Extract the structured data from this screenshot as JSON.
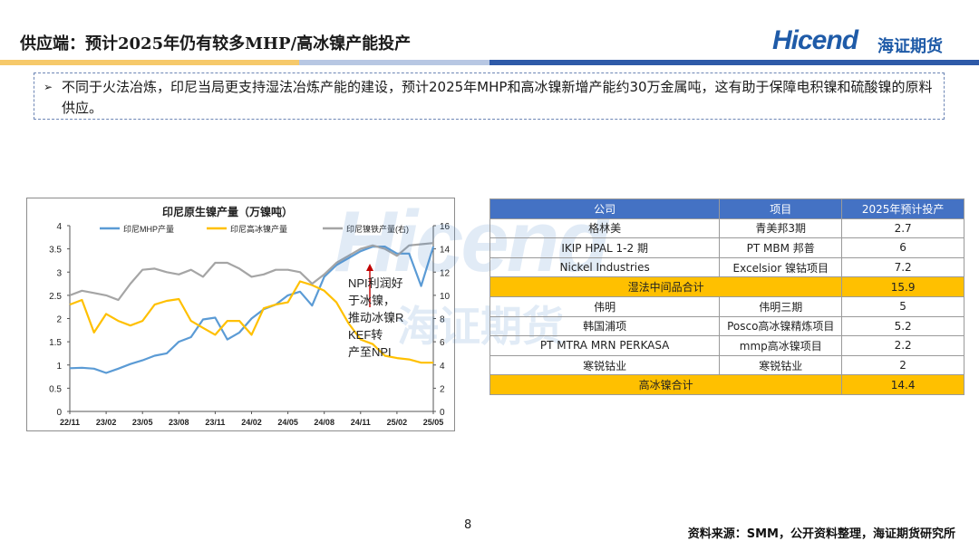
{
  "header": {
    "title": "供应端：预计2025年仍有较多MHP/高冰镍产能投产",
    "logo_en": "Hicend",
    "logo_cn": "海证期货"
  },
  "summary": {
    "bullet": "➢",
    "text": "不同于火法冶炼，印尼当局更支持湿法冶炼产能的建设，预计2025年MHP和高冰镍新增产能约30万金属吨，这有助于保障电积镍和硫酸镍的原料供应。"
  },
  "watermark": {
    "en": "Hicend",
    "cn": "海证期货"
  },
  "chart_data": {
    "type": "line",
    "title": "印尼原生镍产量（万镍吨）",
    "x": [
      "22/11",
      "22/12",
      "23/01",
      "23/02",
      "23/03",
      "23/04",
      "23/05",
      "23/06",
      "23/07",
      "23/08",
      "23/09",
      "23/10",
      "23/11",
      "23/12",
      "24/01",
      "24/02",
      "24/03",
      "24/04",
      "24/05",
      "24/06",
      "24/07",
      "24/08",
      "24/09",
      "24/10",
      "24/11",
      "24/12",
      "25/01",
      "25/02",
      "25/03",
      "25/04",
      "25/05"
    ],
    "xticks": [
      "22/11",
      "23/02",
      "23/05",
      "23/08",
      "23/11",
      "24/02",
      "24/05",
      "24/08",
      "24/11",
      "25/02",
      "25/05"
    ],
    "y_left": {
      "lim": [
        0,
        4
      ],
      "ticks": [
        "0",
        "0.5",
        "1",
        "1.5",
        "2",
        "2.5",
        "3",
        "3.5",
        "4"
      ]
    },
    "y_right": {
      "lim": [
        0,
        16
      ],
      "ticks": [
        "0",
        "2",
        "4",
        "6",
        "8",
        "10",
        "12",
        "14",
        "16"
      ]
    },
    "series": [
      {
        "name": "印尼MHP产量",
        "axis": "left",
        "color": "#5b9bd5",
        "values": [
          0.93,
          0.94,
          0.92,
          0.83,
          0.92,
          1.02,
          1.1,
          1.2,
          1.25,
          1.5,
          1.6,
          1.98,
          2.02,
          1.55,
          1.7,
          2.0,
          2.2,
          2.3,
          2.5,
          2.58,
          2.28,
          2.9,
          3.15,
          3.3,
          3.45,
          3.55,
          3.55,
          3.4,
          3.4,
          2.7,
          3.55
        ]
      },
      {
        "name": "印尼高冰镍产量",
        "axis": "left",
        "color": "#ffc000",
        "values": [
          2.3,
          2.4,
          1.7,
          2.1,
          1.95,
          1.85,
          1.95,
          2.3,
          2.38,
          2.42,
          1.95,
          1.8,
          1.65,
          1.95,
          1.95,
          1.65,
          2.22,
          2.3,
          2.35,
          2.8,
          2.72,
          2.6,
          2.35,
          1.9,
          1.55,
          1.45,
          1.2,
          1.15,
          1.12,
          1.05,
          1.05
        ]
      },
      {
        "name": "印尼镍铁产量(右)",
        "axis": "right",
        "color": "#a5a5a5",
        "values": [
          10.0,
          10.4,
          10.2,
          10.0,
          9.6,
          11.0,
          12.2,
          12.3,
          12.0,
          11.8,
          12.2,
          11.6,
          12.8,
          12.8,
          12.3,
          11.6,
          11.8,
          12.2,
          12.2,
          12.0,
          11.0,
          11.8,
          12.8,
          13.4,
          14.0,
          14.3,
          14.0,
          13.4,
          14.3,
          14.4,
          14.5
        ]
      }
    ],
    "annotation": "NPI利润好于冰镍，推动冰镍RKEF转产至NPI"
  },
  "table": {
    "headers": [
      "公司",
      "项目",
      "2025年预计投产"
    ],
    "rows": [
      {
        "company": "格林美",
        "project": "青美邦3期",
        "value": "2.7",
        "subtotal": false
      },
      {
        "company": "IKIP HPAL 1-2 期",
        "project": "PT MBM 邦普",
        "value": "6",
        "subtotal": false
      },
      {
        "company": "Nickel Industries",
        "project": "Excelsior 镍钴项目",
        "value": "7.2",
        "subtotal": false
      },
      {
        "company": "湿法中间品合计",
        "project": "",
        "value": "15.9",
        "subtotal": true
      },
      {
        "company": "伟明",
        "project": "伟明三期",
        "value": "5",
        "subtotal": false
      },
      {
        "company": "韩国浦项",
        "project": "Posco高冰镍精炼项目",
        "value": "5.2",
        "subtotal": false
      },
      {
        "company": "PT MTRA MRN PERKASA",
        "project": "mmp高冰镍项目",
        "value": "2.2",
        "subtotal": false
      },
      {
        "company": "寒锐钴业",
        "project": "寒锐钴业",
        "value": "2",
        "subtotal": false
      },
      {
        "company": "高冰镍合计",
        "project": "",
        "value": "14.4",
        "subtotal": true
      }
    ]
  },
  "footer": {
    "page": "8",
    "source": "资料来源：SMM，公开资料整理，海证期货研究所"
  }
}
